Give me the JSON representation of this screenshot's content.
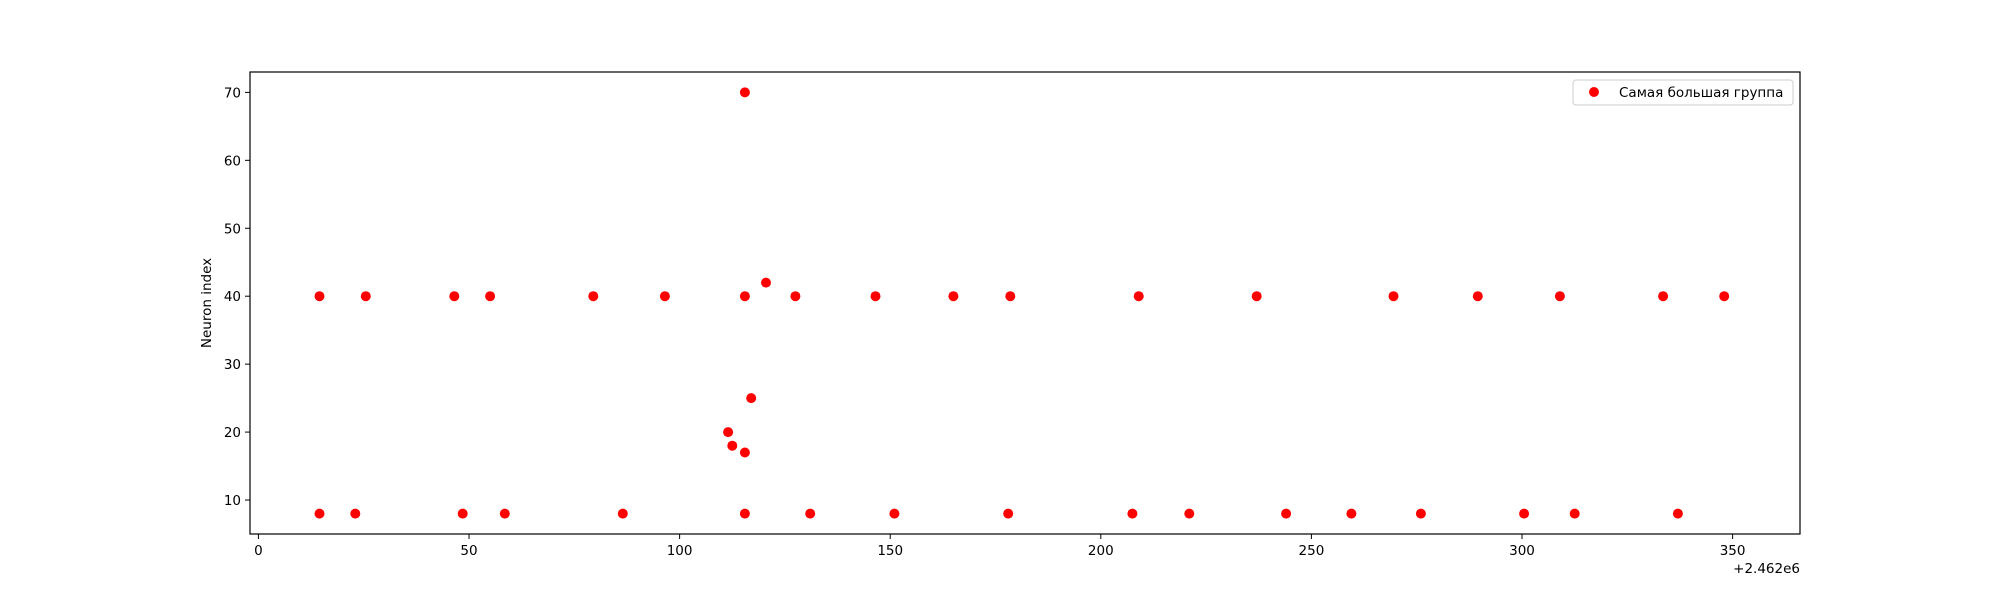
{
  "chart_data": {
    "type": "scatter",
    "title": "",
    "xlabel": "",
    "ylabel": "Neuron index",
    "x_offset_label": "+2.462e6",
    "xlim": [
      -2,
      366
    ],
    "ylim": [
      5,
      73
    ],
    "xticks": [
      0,
      50,
      100,
      150,
      200,
      250,
      300,
      350
    ],
    "yticks": [
      10,
      20,
      30,
      40,
      50,
      60,
      70
    ],
    "grid": false,
    "legend": {
      "position": "top-right",
      "entries": [
        "Самая большая группа"
      ]
    },
    "series": [
      {
        "name": "Самая большая группа",
        "color": "#ff0000",
        "marker": "circle",
        "points": [
          [
            14.5,
            40
          ],
          [
            25.5,
            40
          ],
          [
            46.5,
            40
          ],
          [
            55,
            40
          ],
          [
            79.5,
            40
          ],
          [
            96.5,
            40
          ],
          [
            115.5,
            40
          ],
          [
            127.5,
            40
          ],
          [
            146.5,
            40
          ],
          [
            165,
            40
          ],
          [
            178.5,
            40
          ],
          [
            209,
            40
          ],
          [
            237,
            40
          ],
          [
            269.5,
            40
          ],
          [
            289.5,
            40
          ],
          [
            309,
            40
          ],
          [
            333.5,
            40
          ],
          [
            348,
            40
          ],
          [
            115.5,
            70
          ],
          [
            120.5,
            42
          ],
          [
            117,
            25
          ],
          [
            111.5,
            20
          ],
          [
            112.5,
            18
          ],
          [
            115.5,
            17
          ],
          [
            14.5,
            8
          ],
          [
            23,
            8
          ],
          [
            48.5,
            8
          ],
          [
            58.5,
            8
          ],
          [
            86.5,
            8
          ],
          [
            115.5,
            8
          ],
          [
            131,
            8
          ],
          [
            151,
            8
          ],
          [
            178,
            8
          ],
          [
            207.5,
            8
          ],
          [
            221,
            8
          ],
          [
            244,
            8
          ],
          [
            259.5,
            8
          ],
          [
            276,
            8
          ],
          [
            300.5,
            8
          ],
          [
            312.5,
            8
          ],
          [
            337,
            8
          ]
        ]
      }
    ]
  }
}
